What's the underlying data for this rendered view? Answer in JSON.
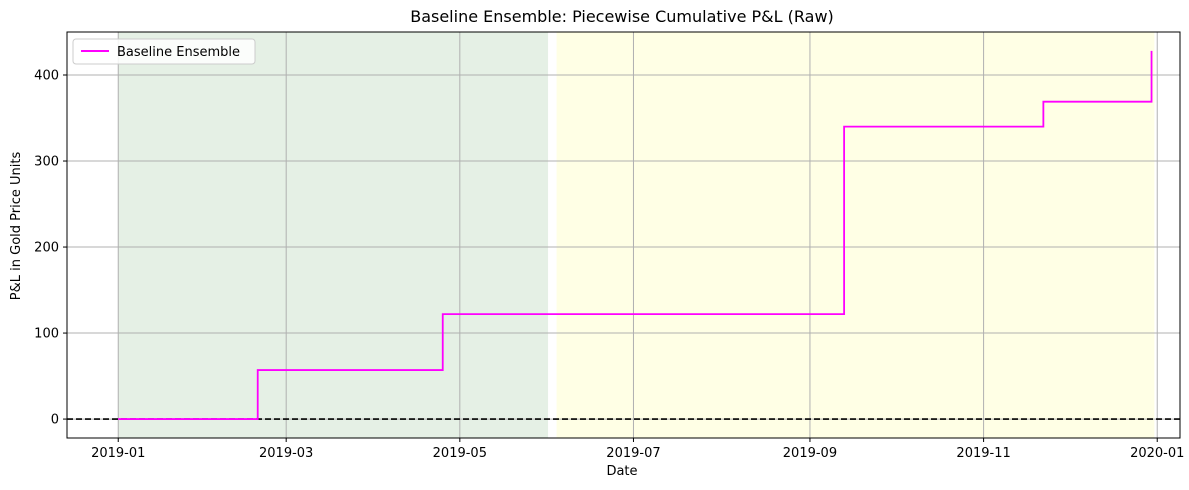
{
  "chart_data": {
    "type": "line",
    "title": "Baseline Ensemble: Piecewise Cumulative P&L (Raw)",
    "xlabel": "Date",
    "ylabel": "P&L in Gold Price Units",
    "x_axis": "date",
    "xlim": [
      "2018-12-14",
      "2020-01-09"
    ],
    "ylim": [
      -22,
      450
    ],
    "xticks": [
      {
        "date": "2019-01-01",
        "label": "2019-01"
      },
      {
        "date": "2019-03-01",
        "label": "2019-03"
      },
      {
        "date": "2019-05-01",
        "label": "2019-05"
      },
      {
        "date": "2019-07-01",
        "label": "2019-07"
      },
      {
        "date": "2019-09-01",
        "label": "2019-09"
      },
      {
        "date": "2019-11-01",
        "label": "2019-11"
      },
      {
        "date": "2020-01-01",
        "label": "2020-01"
      }
    ],
    "yticks": [
      0,
      100,
      200,
      300,
      400
    ],
    "grid": true,
    "legend_position": "top-left",
    "shaded_regions": [
      {
        "start": "2019-01-01",
        "end": "2019-06-01",
        "color": "#e5f0e5"
      },
      {
        "start": "2019-06-04",
        "end": "2019-12-31",
        "color": "#ffffe5"
      }
    ],
    "reference_lines": [
      {
        "y": 0,
        "style": "dashed",
        "color": "#000000"
      }
    ],
    "series": [
      {
        "name": "Baseline Ensemble",
        "color": "#ff00ff",
        "step": "post",
        "points": [
          {
            "x": "2019-01-01",
            "y": 0
          },
          {
            "x": "2019-02-19",
            "y": 57
          },
          {
            "x": "2019-04-25",
            "y": 122
          },
          {
            "x": "2019-09-13",
            "y": 340
          },
          {
            "x": "2019-11-22",
            "y": 369
          },
          {
            "x": "2019-12-30",
            "y": 428
          }
        ]
      }
    ]
  }
}
